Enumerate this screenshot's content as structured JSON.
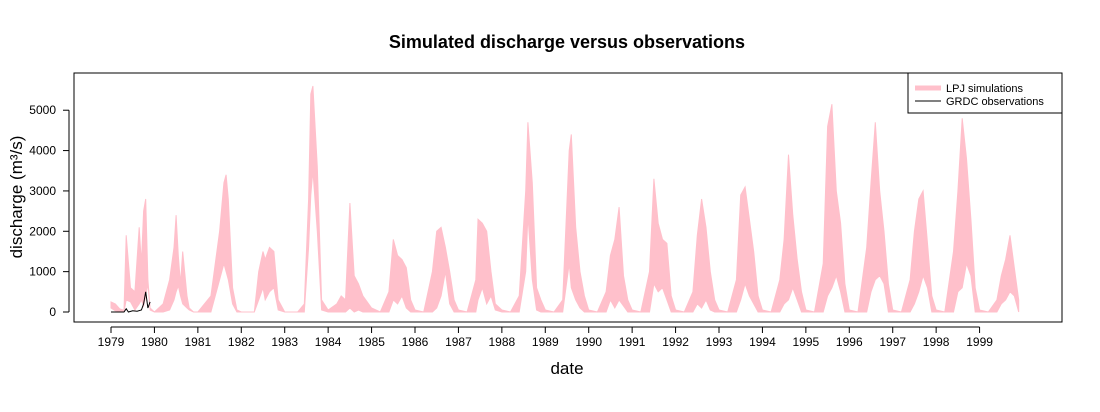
{
  "chart_data": {
    "type": "area",
    "title": "Simulated discharge versus observations",
    "xlabel": "date",
    "ylabel": "discharge (m³/s)",
    "ylim": [
      0,
      5800
    ],
    "yticks": [
      0,
      1000,
      2000,
      3000,
      4000,
      5000
    ],
    "xlim": [
      1978.8,
      2000.8
    ],
    "xticks": [
      "1979",
      "1980",
      "1981",
      "1982",
      "1983",
      "1984",
      "1985",
      "1986",
      "1987",
      "1988",
      "1989",
      "1990",
      "1991",
      "1992",
      "1993",
      "1994",
      "1995",
      "1996",
      "1997",
      "1998",
      "1999"
    ],
    "grid": false,
    "legend": {
      "position": "top-right",
      "entries": [
        {
          "label": "LPJ simulations",
          "color": "#ffc0cb",
          "style": "band"
        },
        {
          "label": "GRDC observations",
          "color": "#000000",
          "style": "line"
        }
      ]
    },
    "series": [
      {
        "name": "LPJ simulations",
        "kind": "band",
        "color": "#ffc0cb",
        "x": [
          1979.0,
          1979.1,
          1979.2,
          1979.3,
          1979.35,
          1979.45,
          1979.55,
          1979.65,
          1979.7,
          1979.75,
          1979.8,
          1979.85,
          1979.9,
          1980.0,
          1980.2,
          1980.35,
          1980.45,
          1980.5,
          1980.55,
          1980.6,
          1980.65,
          1980.75,
          1980.8,
          1980.9,
          1981.0,
          1981.3,
          1981.5,
          1981.6,
          1981.65,
          1981.7,
          1981.8,
          1981.9,
          1982.0,
          1982.3,
          1982.4,
          1982.5,
          1982.55,
          1982.65,
          1982.75,
          1982.85,
          1983.0,
          1983.3,
          1983.45,
          1983.55,
          1983.6,
          1983.65,
          1983.75,
          1983.85,
          1984.0,
          1984.2,
          1984.3,
          1984.4,
          1984.5,
          1984.6,
          1984.7,
          1984.8,
          1985.0,
          1985.2,
          1985.4,
          1985.5,
          1985.6,
          1985.7,
          1985.8,
          1985.9,
          1986.0,
          1986.2,
          1986.4,
          1986.5,
          1986.6,
          1986.7,
          1986.8,
          1986.9,
          1987.0,
          1987.2,
          1987.4,
          1987.45,
          1987.55,
          1987.65,
          1987.75,
          1987.85,
          1988.0,
          1988.2,
          1988.4,
          1988.55,
          1988.6,
          1988.7,
          1988.8,
          1988.9,
          1989.0,
          1989.2,
          1989.4,
          1989.55,
          1989.6,
          1989.7,
          1989.8,
          1989.9,
          1990.0,
          1990.2,
          1990.4,
          1990.5,
          1990.6,
          1990.7,
          1990.8,
          1990.9,
          1991.0,
          1991.2,
          1991.4,
          1991.5,
          1991.6,
          1991.7,
          1991.8,
          1991.9,
          1992.0,
          1992.2,
          1992.4,
          1992.5,
          1992.6,
          1992.7,
          1992.8,
          1992.9,
          1993.0,
          1993.2,
          1993.4,
          1993.5,
          1993.6,
          1993.7,
          1993.8,
          1993.9,
          1994.0,
          1994.2,
          1994.4,
          1994.5,
          1994.6,
          1994.7,
          1994.8,
          1994.9,
          1995.0,
          1995.2,
          1995.4,
          1995.5,
          1995.6,
          1995.7,
          1995.8,
          1995.9,
          1996.0,
          1996.2,
          1996.4,
          1996.5,
          1996.6,
          1996.7,
          1996.8,
          1996.9,
          1997.0,
          1997.2,
          1997.4,
          1997.5,
          1997.6,
          1997.7,
          1997.8,
          1997.9,
          1998.0,
          1998.2,
          1998.4,
          1998.5,
          1998.6,
          1998.7,
          1998.8,
          1998.9,
          1999.0,
          1999.2,
          1999.4,
          1999.5,
          1999.6,
          1999.7,
          1999.8,
          1999.9
        ],
        "lower": [
          100,
          30,
          20,
          10,
          300,
          250,
          50,
          200,
          300,
          150,
          400,
          700,
          50,
          0,
          0,
          50,
          300,
          500,
          650,
          400,
          200,
          100,
          50,
          0,
          0,
          0,
          800,
          1200,
          1000,
          800,
          200,
          0,
          0,
          0,
          300,
          600,
          300,
          500,
          600,
          50,
          0,
          0,
          0,
          1600,
          2900,
          3500,
          2000,
          50,
          0,
          0,
          0,
          0,
          100,
          0,
          50,
          0,
          0,
          0,
          0,
          300,
          200,
          400,
          100,
          0,
          0,
          0,
          0,
          100,
          400,
          1000,
          200,
          0,
          0,
          0,
          0,
          300,
          600,
          200,
          400,
          50,
          0,
          0,
          0,
          1000,
          2400,
          800,
          50,
          0,
          0,
          0,
          0,
          1200,
          600,
          300,
          100,
          0,
          0,
          0,
          0,
          300,
          100,
          300,
          150,
          0,
          0,
          0,
          0,
          700,
          500,
          600,
          300,
          0,
          0,
          0,
          0,
          200,
          100,
          300,
          50,
          0,
          0,
          0,
          0,
          300,
          700,
          400,
          200,
          0,
          0,
          0,
          0,
          200,
          300,
          600,
          300,
          0,
          0,
          0,
          0,
          400,
          600,
          900,
          500,
          0,
          0,
          0,
          0,
          500,
          800,
          900,
          700,
          0,
          0,
          0,
          0,
          200,
          500,
          900,
          600,
          0,
          0,
          0,
          0,
          500,
          600,
          1200,
          900,
          0,
          0,
          0,
          0,
          200,
          300,
          500,
          400,
          0
        ],
        "upper": [
          250,
          200,
          80,
          40,
          1900,
          600,
          500,
          2100,
          1200,
          2500,
          2800,
          800,
          100,
          0,
          200,
          800,
          1600,
          2400,
          1400,
          700,
          1500,
          400,
          100,
          0,
          0,
          400,
          2000,
          3200,
          3400,
          2800,
          600,
          50,
          0,
          0,
          1000,
          1500,
          1300,
          1600,
          1500,
          300,
          0,
          0,
          200,
          2800,
          5400,
          5600,
          3600,
          300,
          50,
          200,
          400,
          300,
          2700,
          900,
          700,
          400,
          100,
          0,
          500,
          1800,
          1400,
          1300,
          1100,
          300,
          50,
          0,
          1000,
          2000,
          2100,
          1600,
          1000,
          300,
          50,
          0,
          800,
          2300,
          2200,
          2000,
          1000,
          200,
          50,
          0,
          400,
          3000,
          4700,
          3200,
          600,
          300,
          50,
          0,
          300,
          4000,
          4400,
          2100,
          1000,
          400,
          50,
          0,
          500,
          1400,
          1800,
          2600,
          900,
          300,
          50,
          0,
          1000,
          3300,
          2200,
          1800,
          1700,
          400,
          50,
          0,
          500,
          1900,
          2800,
          2100,
          1000,
          300,
          50,
          0,
          800,
          2900,
          3100,
          2300,
          1500,
          400,
          50,
          0,
          800,
          1800,
          3900,
          2400,
          1300,
          500,
          50,
          0,
          1200,
          4600,
          5150,
          3000,
          2200,
          700,
          50,
          0,
          1600,
          3200,
          4700,
          3000,
          2000,
          700,
          50,
          0,
          800,
          2000,
          2800,
          3000,
          1700,
          400,
          50,
          0,
          1500,
          3000,
          4800,
          3800,
          2300,
          600,
          50,
          0,
          300,
          900,
          1300,
          1900,
          1100,
          300
        ]
      },
      {
        "name": "GRDC observations",
        "kind": "line",
        "color": "#000000",
        "x": [
          1979.0,
          1979.1,
          1979.2,
          1979.3,
          1979.35,
          1979.4,
          1979.5,
          1979.6,
          1979.7,
          1979.75,
          1979.8,
          1979.85,
          1979.9
        ],
        "y": [
          0,
          0,
          0,
          0,
          80,
          0,
          30,
          20,
          50,
          200,
          500,
          100,
          250
        ]
      }
    ]
  }
}
